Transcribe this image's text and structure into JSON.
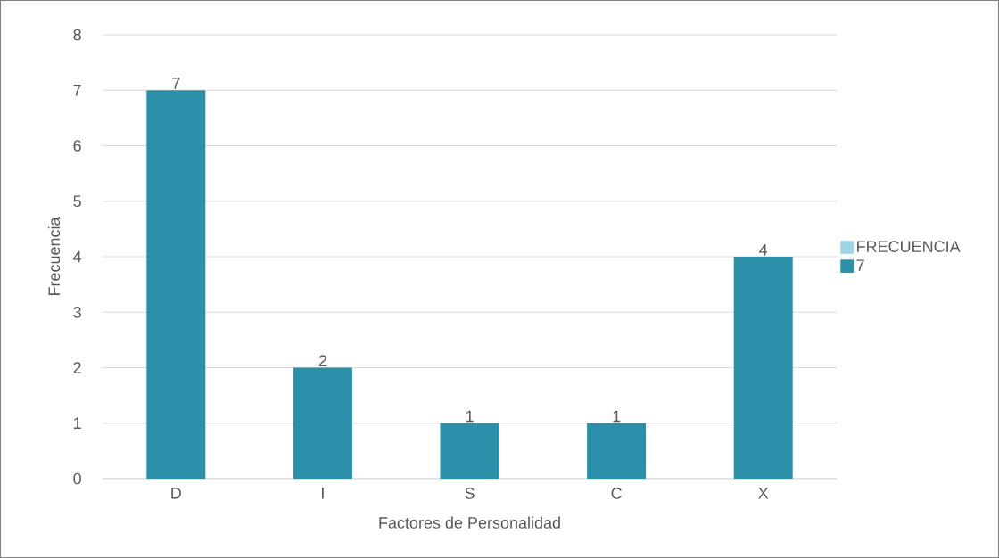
{
  "chart_data": {
    "type": "bar",
    "xlabel": "Factores de Personalidad",
    "ylabel": "Frecuencia",
    "categories": [
      "D",
      "I",
      "S",
      "C",
      "X"
    ],
    "series": [
      {
        "name": "FRECUENCIA",
        "color": "#9fd4e4",
        "values": [
          null,
          null,
          null,
          null,
          null
        ]
      },
      {
        "name": "7",
        "color": "#2b8fa9",
        "values": [
          7,
          2,
          1,
          1,
          4
        ]
      }
    ],
    "ylim": [
      0,
      8
    ],
    "yticks": [
      0,
      1,
      2,
      3,
      4,
      5,
      6,
      7,
      8
    ],
    "grid": "y",
    "legend": "right",
    "data_labels": true
  }
}
